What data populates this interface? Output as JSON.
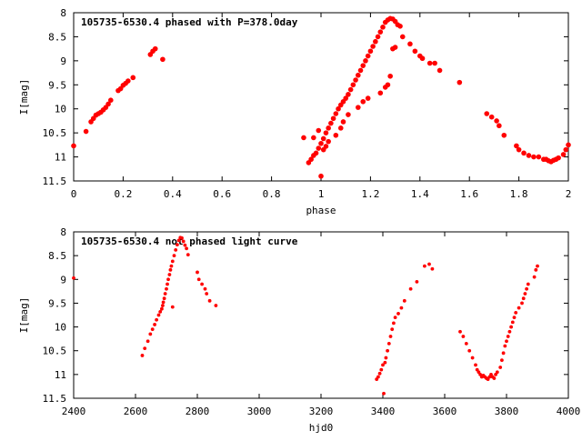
{
  "chart_data": [
    {
      "type": "scatter",
      "title": "105735-6530.4 phased with P=378.0day",
      "xlabel": "phase",
      "ylabel": "I[mag]",
      "xlim": [
        0,
        2
      ],
      "ylim": [
        8,
        11.5
      ],
      "y_inverted": true,
      "x_ticks": [
        "0",
        "0.2",
        "0.4",
        "0.6",
        "0.8",
        "1",
        "1.2",
        "1.4",
        "1.6",
        "1.8",
        "2"
      ],
      "y_ticks": [
        "8",
        "8.5",
        "9",
        "9.5",
        "10",
        "10.5",
        "11",
        "11.5"
      ],
      "grid": false,
      "marker_color": "#ff0000",
      "series": [
        {
          "x": [
            0.0,
            0.05,
            0.07,
            0.08,
            0.09,
            0.1,
            0.11,
            0.12,
            0.13,
            0.14,
            0.15,
            0.18,
            0.19,
            0.2,
            0.21,
            0.22,
            0.24,
            0.31,
            0.32,
            0.33,
            0.36,
            0.93,
            0.95,
            0.96,
            0.97,
            0.98,
            0.99,
            1.0,
            1.01,
            1.02,
            1.03,
            1.04,
            1.05,
            1.06,
            1.07,
            1.08,
            1.09,
            1.1,
            1.11,
            1.12,
            1.13,
            1.14,
            1.15,
            1.16,
            1.17,
            1.18,
            1.19,
            1.2,
            1.21,
            1.22,
            1.23,
            1.24,
            1.25,
            1.26,
            1.27,
            1.28,
            1.29,
            1.3,
            1.31,
            1.32,
            1.33,
            1.36,
            1.38,
            1.4,
            1.41,
            1.44,
            1.46,
            1.48,
            1.56,
            1.67,
            1.69,
            1.71,
            1.72,
            1.74,
            1.79,
            1.8,
            1.82,
            1.84,
            1.86,
            1.88,
            1.9,
            1.91,
            1.92,
            1.93,
            1.94,
            1.95,
            1.96,
            1.98,
            1.99,
            2.0,
            0.97,
            0.99,
            1.0,
            1.01,
            1.02,
            1.03,
            1.06,
            1.08,
            1.09,
            1.11,
            1.15,
            1.17,
            1.19,
            1.24,
            1.26,
            1.27,
            1.28,
            1.29,
            1.3
          ],
          "y": [
            10.77,
            10.47,
            10.27,
            10.2,
            10.13,
            10.1,
            10.07,
            10.02,
            9.97,
            9.9,
            9.82,
            9.62,
            9.58,
            9.51,
            9.47,
            9.42,
            9.35,
            8.87,
            8.8,
            8.75,
            8.97,
            10.6,
            11.12,
            11.05,
            10.97,
            10.92,
            10.82,
            10.72,
            10.62,
            10.5,
            10.4,
            10.3,
            10.2,
            10.1,
            10.0,
            9.92,
            9.85,
            9.78,
            9.7,
            9.6,
            9.5,
            9.4,
            9.3,
            9.2,
            9.1,
            9.0,
            8.9,
            8.8,
            8.7,
            8.6,
            8.5,
            8.4,
            8.3,
            8.2,
            8.15,
            8.12,
            8.13,
            8.18,
            8.25,
            8.28,
            8.5,
            8.65,
            8.8,
            8.9,
            8.95,
            9.05,
            9.05,
            9.2,
            9.45,
            10.1,
            10.17,
            10.25,
            10.35,
            10.55,
            10.77,
            10.85,
            10.92,
            10.97,
            11.0,
            11.0,
            11.05,
            11.05,
            11.08,
            11.1,
            11.07,
            11.05,
            11.02,
            10.95,
            10.85,
            10.75,
            10.6,
            10.45,
            11.4,
            10.85,
            10.78,
            10.68,
            10.55,
            10.4,
            10.27,
            10.12,
            9.97,
            9.85,
            9.78,
            9.67,
            9.55,
            9.5,
            9.32,
            8.75,
            8.72
          ]
        }
      ]
    },
    {
      "type": "scatter",
      "title": "105735-6530.4 not phased light curve",
      "xlabel": "hjd0",
      "ylabel": "I[mag]",
      "xlim": [
        2400,
        4000
      ],
      "ylim": [
        8,
        11.5
      ],
      "y_inverted": true,
      "x_ticks": [
        "2400",
        "2600",
        "2800",
        "3000",
        "3200",
        "3400",
        "3600",
        "3800",
        "4000"
      ],
      "y_ticks": [
        "8",
        "8.5",
        "9",
        "9.5",
        "10",
        "10.5",
        "11",
        "11.5"
      ],
      "grid": false,
      "marker_color": "#ff0000",
      "series": [
        {
          "x": [
            2400,
            2622,
            2630,
            2640,
            2648,
            2655,
            2662,
            2668,
            2675,
            2680,
            2685,
            2688,
            2690,
            2693,
            2696,
            2700,
            2703,
            2706,
            2710,
            2713,
            2716,
            2720,
            2725,
            2730,
            2735,
            2740,
            2745,
            2750,
            2755,
            2760,
            2765,
            2770,
            2720,
            2800,
            2805,
            2815,
            2825,
            2830,
            2840,
            2860,
            3380,
            3385,
            3390,
            3395,
            3400,
            3403,
            3407,
            3410,
            3415,
            3420,
            3425,
            3430,
            3435,
            3440,
            3450,
            3460,
            3470,
            3490,
            3510,
            3535,
            3550,
            3560,
            3650,
            3660,
            3670,
            3680,
            3690,
            3700,
            3705,
            3710,
            3715,
            3720,
            3725,
            3730,
            3735,
            3740,
            3745,
            3750,
            3755,
            3760,
            3765,
            3770,
            3780,
            3785,
            3790,
            3795,
            3800,
            3805,
            3810,
            3815,
            3820,
            3825,
            3830,
            3840,
            3850,
            3855,
            3860,
            3865,
            3870,
            3890,
            3895,
            3900
          ],
          "y": [
            8.97,
            10.6,
            10.45,
            10.3,
            10.15,
            10.05,
            9.95,
            9.85,
            9.75,
            9.68,
            9.62,
            9.55,
            9.48,
            9.4,
            9.3,
            9.2,
            9.1,
            9.0,
            8.9,
            8.8,
            8.72,
            8.62,
            8.5,
            8.38,
            8.27,
            8.18,
            8.12,
            8.13,
            8.2,
            8.28,
            8.35,
            8.48,
            9.58,
            8.85,
            9.0,
            9.1,
            9.2,
            9.3,
            9.45,
            9.55,
            11.1,
            11.05,
            10.98,
            10.9,
            10.8,
            11.4,
            10.75,
            10.65,
            10.5,
            10.35,
            10.2,
            10.05,
            9.92,
            9.8,
            9.72,
            9.6,
            9.45,
            9.2,
            9.05,
            8.72,
            8.68,
            8.78,
            10.1,
            10.2,
            10.35,
            10.5,
            10.65,
            10.8,
            10.9,
            10.95,
            11.0,
            11.05,
            11.02,
            11.05,
            11.08,
            11.1,
            11.05,
            11.0,
            11.05,
            11.08,
            11.0,
            10.95,
            10.85,
            10.7,
            10.55,
            10.4,
            10.3,
            10.2,
            10.1,
            10.0,
            9.9,
            9.8,
            9.7,
            9.6,
            9.5,
            9.4,
            9.3,
            9.2,
            9.1,
            8.95,
            8.8,
            8.72
          ]
        }
      ]
    }
  ]
}
